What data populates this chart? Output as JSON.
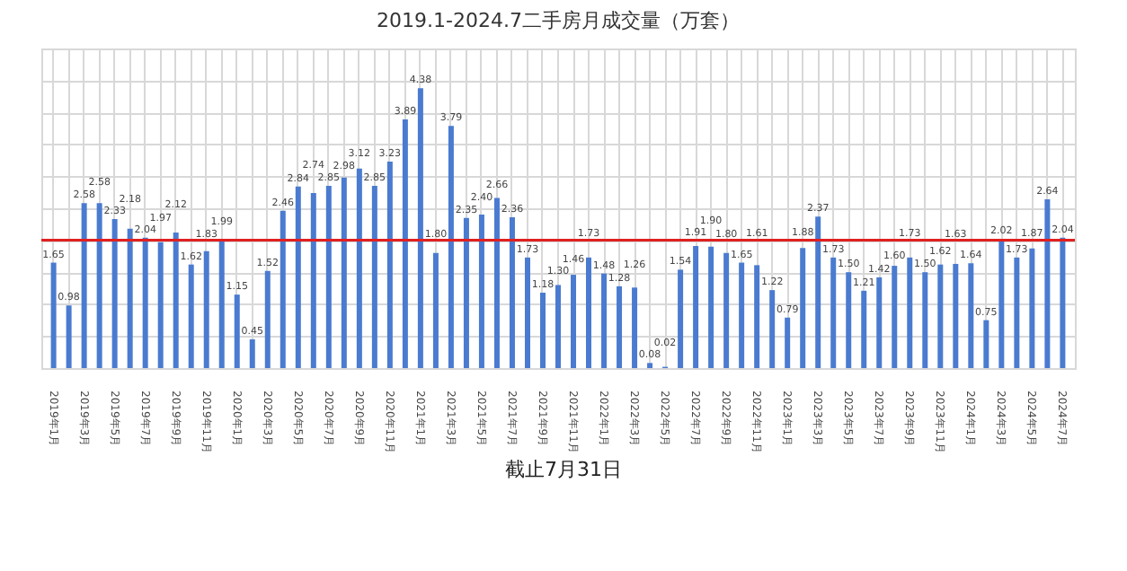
{
  "chart_data": {
    "type": "bar",
    "title": "2019.1-2024.7二手房月成交量（万套）",
    "annotations": [
      "截止7月31日"
    ],
    "categories": [
      "2019年1月",
      null,
      "2019年3月",
      null,
      "2019年5月",
      null,
      "2019年7月",
      null,
      "2019年9月",
      null,
      "2019年11月",
      null,
      "2020年1月",
      null,
      "2020年3月",
      null,
      "2020年5月",
      null,
      "2020年7月",
      null,
      "2020年9月",
      null,
      "2020年11月",
      null,
      "2021年1月",
      null,
      "2021年3月",
      null,
      "2021年5月",
      null,
      "2021年7月",
      null,
      "2021年9月",
      null,
      "2021年11月",
      null,
      "2022年1月",
      null,
      "2022年3月",
      null,
      "2022年5月",
      null,
      "2022年7月",
      null,
      "2022年9月",
      null,
      "2022年11月",
      null,
      "2023年1月",
      null,
      "2023年3月",
      null,
      "2023年5月",
      null,
      "2023年7月",
      null,
      "2023年9月",
      null,
      "2023年11月",
      null,
      "2024年1月",
      null,
      "2024年3月",
      null,
      "2024年5月",
      null,
      "2024年7月"
    ],
    "series": [
      {
        "color": "#4a7bd0",
        "values": [
          1.65,
          0.98,
          2.58,
          2.58,
          2.33,
          2.18,
          2.04,
          1.97,
          2.12,
          1.62,
          1.83,
          1.99,
          1.15,
          0.45,
          1.52,
          2.46,
          2.84,
          2.74,
          2.85,
          2.98,
          3.12,
          2.85,
          3.23,
          3.89,
          4.38,
          1.8,
          3.79,
          2.35,
          2.4,
          2.66,
          2.36,
          1.73,
          1.18,
          1.3,
          1.46,
          1.73,
          1.48,
          1.28,
          1.26,
          0.08,
          0.02,
          1.54,
          1.91,
          1.9,
          1.8,
          1.65,
          1.61,
          1.22,
          0.79,
          1.88,
          2.37,
          1.73,
          1.5,
          1.21,
          1.42,
          1.6,
          1.73,
          1.5,
          1.62,
          1.63,
          1.64,
          0.75,
          2.02,
          1.73,
          1.87,
          2.64,
          2.04
        ],
        "value_labels": [
          "1.65",
          "0.98",
          "2.58",
          "2.58",
          "2.33",
          "2.18",
          "2.04",
          "1.97",
          "2.12",
          "1.62",
          "1.83",
          "1.99",
          "1.15",
          "0.45",
          "1.52",
          "2.46",
          "2.84",
          "2.74",
          "2.85",
          "2.98",
          "3.12",
          "2.85",
          "3.23",
          "3.89",
          "4.38",
          "1.80",
          "3.79",
          "2.35",
          "2.40",
          "2.66",
          "2.36",
          "1.73",
          "1.18",
          "1.30",
          "1.46",
          "1.73",
          "1.48",
          "1.28",
          "1.26",
          "0.08",
          "0.02",
          "1.54",
          "1.91",
          "1.90",
          "1.80",
          "1.65",
          "1.61",
          "1.22",
          "0.79",
          "1.88",
          "2.37",
          "1.73",
          "1.50",
          "1.21",
          "1.42",
          "1.60",
          "1.73",
          "1.50",
          "1.62",
          "1.63",
          "1.64",
          "0.75",
          "2.02",
          "1.73",
          "1.87",
          "2.64",
          "2.04"
        ]
      }
    ],
    "ylim": [
      0,
      5
    ],
    "tick_labels": "x",
    "grid": true,
    "ref_lines": [
      {
        "axis": "y",
        "value": 2.0,
        "color": "#e02020"
      }
    ]
  }
}
